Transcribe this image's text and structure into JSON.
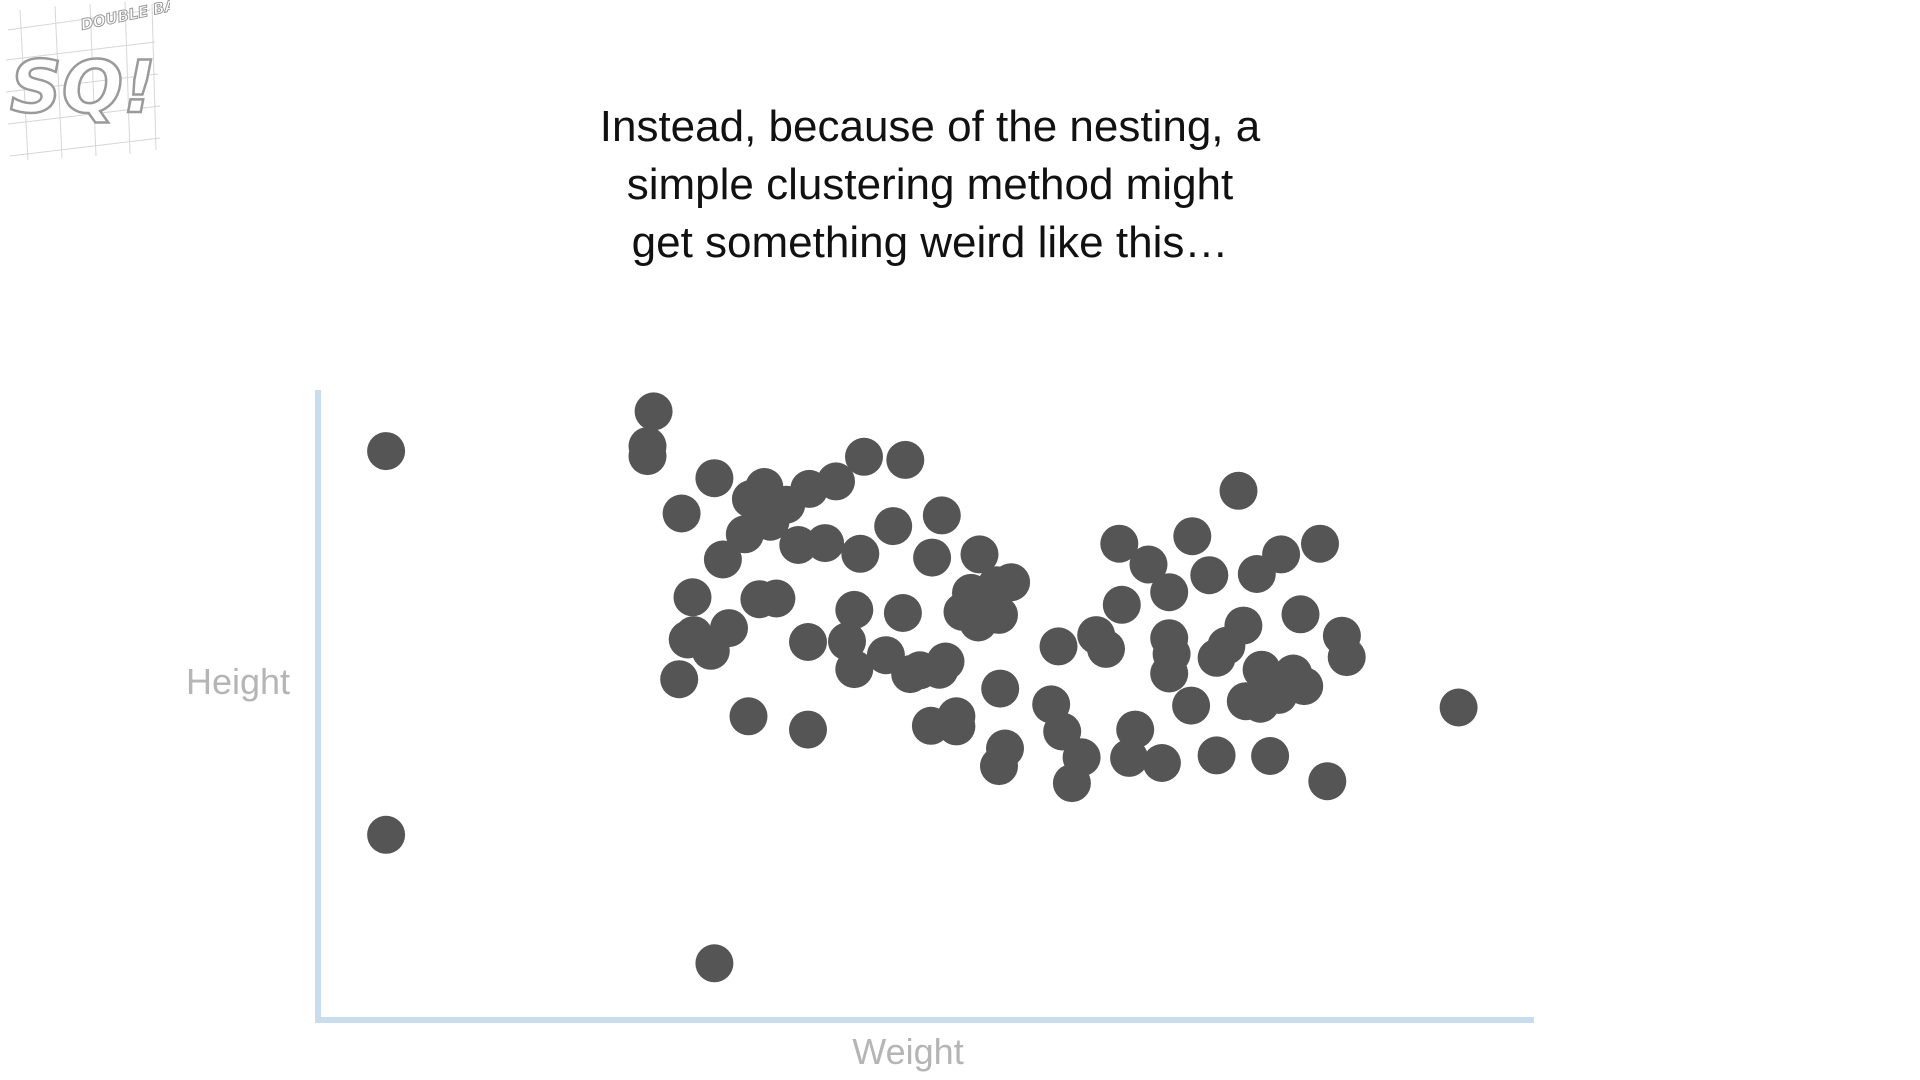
{
  "title_lines": [
    "Instead, because of the nesting, a",
    "simple clustering method might",
    "get something weird like this…"
  ],
  "logo": {
    "text_top": "DOUBLE BAM!!",
    "text_main": "SQ!"
  },
  "colors": {
    "point": "#555555",
    "axis": "#c9dcec",
    "axis_label": "#b5b5b5"
  },
  "chart_data": {
    "type": "scatter",
    "xlabel": "Weight",
    "ylabel": "Height",
    "xlim": [
      0,
      100
    ],
    "ylim": [
      0,
      100
    ],
    "grid": false,
    "legend": "none",
    "x": [
      5.6,
      5.6,
      32.6,
      27.6,
      27.1,
      29.9,
      27.1,
      32.6,
      35.6,
      36.7,
      38.5,
      40.4,
      42.6,
      44.9,
      48.3,
      51.3,
      54.4,
      57.0,
      53.7,
      50.5,
      47.3,
      44.6,
      41.7,
      39.5,
      37.2,
      35.1,
      33.3,
      30.8,
      30.4,
      30.9,
      33.8,
      36.3,
      37.7,
      40.3,
      43.5,
      44.1,
      48.1,
      48.7,
      51.1,
      51.6,
      54.3,
      56.0,
      55.8,
      53.0,
      49.5,
      46.7,
      44.1,
      40.3,
      35.4,
      32.3,
      29.7,
      65.9,
      68.3,
      71.9,
      75.7,
      82.4,
      77.2,
      79.2,
      73.3,
      70.0,
      66.1,
      64.8,
      70.0,
      73.9,
      79.0,
      76.1,
      70.0,
      77.6,
      80.8,
      76.3,
      93.8,
      52.5,
      56.1,
      60.9,
      64.0,
      70.2,
      74.7,
      80.2,
      84.2,
      84.6,
      81.1,
      77.5,
      71.8,
      67.2,
      62.8,
      60.3,
      56.5,
      56.0,
      62.0,
      66.7,
      69.4,
      73.9,
      78.3,
      83.0,
      50.4,
      52.5,
      61.2
    ],
    "y": [
      90.3,
      29.4,
      9.0,
      96.6,
      89.5,
      80.4,
      91.1,
      86.0,
      82.7,
      84.6,
      81.8,
      84.3,
      85.5,
      89.4,
      88.9,
      80.1,
      73.9,
      69.5,
      67.8,
      73.4,
      78.4,
      74.0,
      75.7,
      75.4,
      79.1,
      77.1,
      73.1,
      67.1,
      60.4,
      61.1,
      62.2,
      66.8,
      66.9,
      60.0,
      60.1,
      65.1,
      64.6,
      54.9,
      55.6,
      56.9,
      63.1,
      64.3,
      69.0,
      64.8,
      55.5,
      57.9,
      55.7,
      46.1,
      48.2,
      58.6,
      54.1,
      75.6,
      72.3,
      76.8,
      84.0,
      75.6,
      70.8,
      73.9,
      70.6,
      67.9,
      65.9,
      58.9,
      60.6,
      57.5,
      51.6,
      62.6,
      55.0,
      55.6,
      64.4,
      50.6,
      49.6,
      48.2,
      52.6,
      59.3,
      61.1,
      58.1,
      59.4,
      55.0,
      61.0,
      57.6,
      53.0,
      50.2,
      49.9,
      46.1,
      41.7,
      50.1,
      43.1,
      40.3,
      37.6,
      41.6,
      40.8,
      42.0,
      41.9,
      37.9,
      46.7,
      46.6,
      45.8
    ]
  }
}
